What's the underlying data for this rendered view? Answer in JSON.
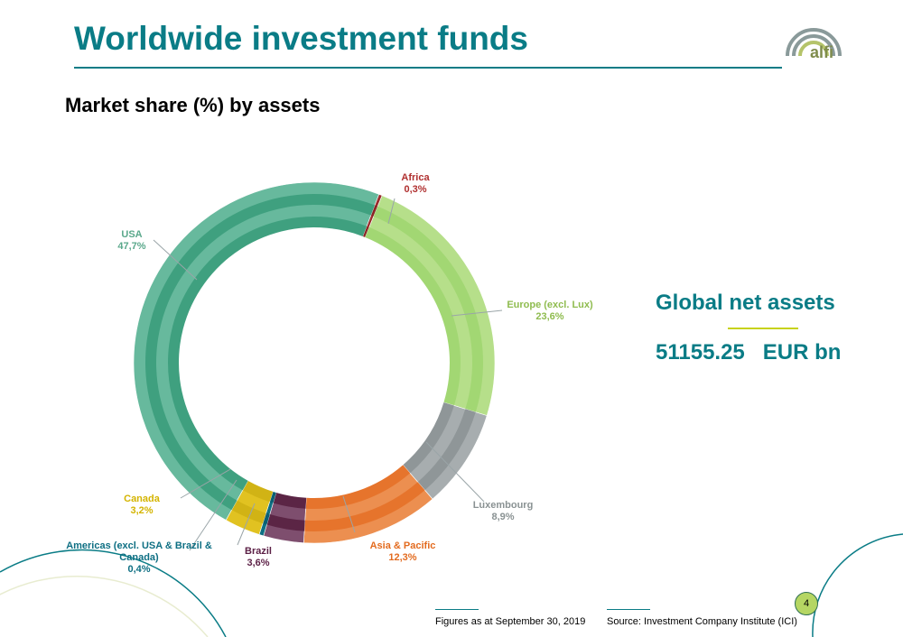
{
  "header": {
    "title": "Worldwide investment funds",
    "logo_text": "alfi"
  },
  "subtitle": "Market share (%) by assets",
  "summary": {
    "label": "Global net assets",
    "value": "51155.25   EUR bn"
  },
  "footer": {
    "date_note": "Figures as at  September 30, 2019",
    "source_note": "Source: Investment Company Institute (ICI)",
    "page_number": "4"
  },
  "chart_data": {
    "type": "pie",
    "categories": [
      "Africa",
      "Europe (excl. Lux)",
      "Luxembourg",
      "Asia & Pacific",
      "Brazil",
      "Americas (excl. USA & Brazil & Canada)",
      "Canada",
      "USA"
    ],
    "values": [
      0.3,
      23.6,
      8.9,
      12.3,
      3.6,
      0.4,
      3.2,
      47.7
    ],
    "value_labels": [
      "0,3%",
      "23,6%",
      "8,9%",
      "12,3%",
      "3,6%",
      "0,4%",
      "3,2%",
      "47,7%"
    ],
    "label_lines": [
      [
        "Africa"
      ],
      [
        "Europe (excl. Lux)"
      ],
      [
        "Luxembourg"
      ],
      [
        "Asia & Pacific"
      ],
      [
        "Brazil"
      ],
      [
        "Americas (excl. USA & Brazil &",
        "Canada)"
      ],
      [
        "Canada"
      ],
      [
        "USA"
      ]
    ],
    "unit": "%",
    "style": "donut",
    "colors": {
      "fill": [
        "#9b2d2d",
        "#b6df8a",
        "#a7adaf",
        "#ec8f50",
        "#7e4e6e",
        "#0e6f83",
        "#e1c221",
        "#67b99d"
      ],
      "band": [
        "#8a2525",
        "#a2d773",
        "#8f9698",
        "#e6742c",
        "#5b2545",
        "#0a5f73",
        "#d1b315",
        "#3fa07f"
      ],
      "label": [
        "#b03030",
        "#8fbc4f",
        "#8a9293",
        "#e36b1f",
        "#5b1f45",
        "#0e6f83",
        "#d4b400",
        "#5aa88b"
      ]
    }
  }
}
